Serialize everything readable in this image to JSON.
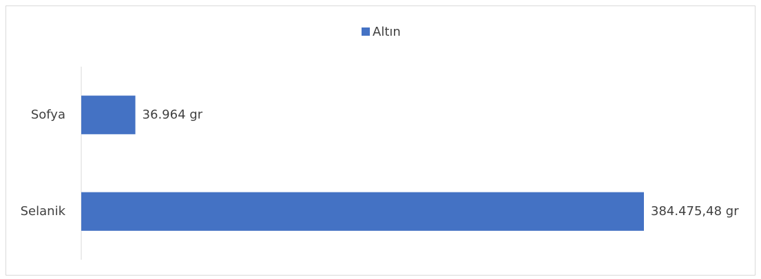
{
  "chart_data": {
    "type": "bar",
    "orientation": "horizontal",
    "categories": [
      "Sofya",
      "Selanik"
    ],
    "series": [
      {
        "name": "Altın",
        "color": "#4472c4",
        "values": [
          36964,
          384475.48
        ],
        "value_labels": [
          "36.964 gr",
          "384.475,48 gr"
        ]
      }
    ],
    "legend": "top",
    "grid": false
  }
}
